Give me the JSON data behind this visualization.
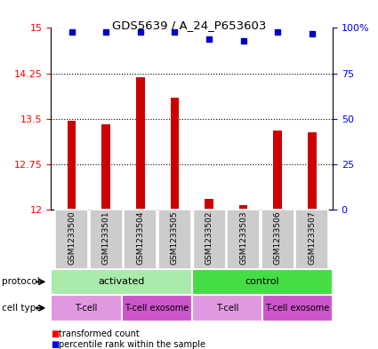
{
  "title": "GDS5639 / A_24_P653603",
  "samples": [
    "GSM1233500",
    "GSM1233501",
    "GSM1233504",
    "GSM1233505",
    "GSM1233502",
    "GSM1233503",
    "GSM1233506",
    "GSM1233507"
  ],
  "transformed_counts": [
    13.47,
    13.4,
    14.19,
    13.85,
    12.17,
    12.07,
    13.3,
    13.28
  ],
  "percentile_ranks": [
    98,
    98,
    98,
    98,
    94,
    93,
    98,
    97
  ],
  "ylim_left": [
    12,
    15
  ],
  "ylim_right": [
    0,
    100
  ],
  "yticks_left": [
    12,
    12.75,
    13.5,
    14.25,
    15
  ],
  "yticks_right": [
    0,
    25,
    50,
    75,
    100
  ],
  "bar_color": "#cc0000",
  "dot_color": "#0000cc",
  "protocol_groups": [
    {
      "label": "activated",
      "start": 0,
      "end": 4,
      "color": "#aaeaaa"
    },
    {
      "label": "control",
      "start": 4,
      "end": 8,
      "color": "#44dd44"
    }
  ],
  "celltype_groups": [
    {
      "label": "T-cell",
      "start": 0,
      "end": 2,
      "color": "#e099e0"
    },
    {
      "label": "T-cell exosome",
      "start": 2,
      "end": 4,
      "color": "#cc55cc"
    },
    {
      "label": "T-cell",
      "start": 4,
      "end": 6,
      "color": "#e099e0"
    },
    {
      "label": "T-cell exosome",
      "start": 6,
      "end": 8,
      "color": "#cc55cc"
    }
  ],
  "sample_area_color": "#cccccc",
  "legend_red_label": "transformed count",
  "legend_blue_label": "percentile rank within the sample"
}
